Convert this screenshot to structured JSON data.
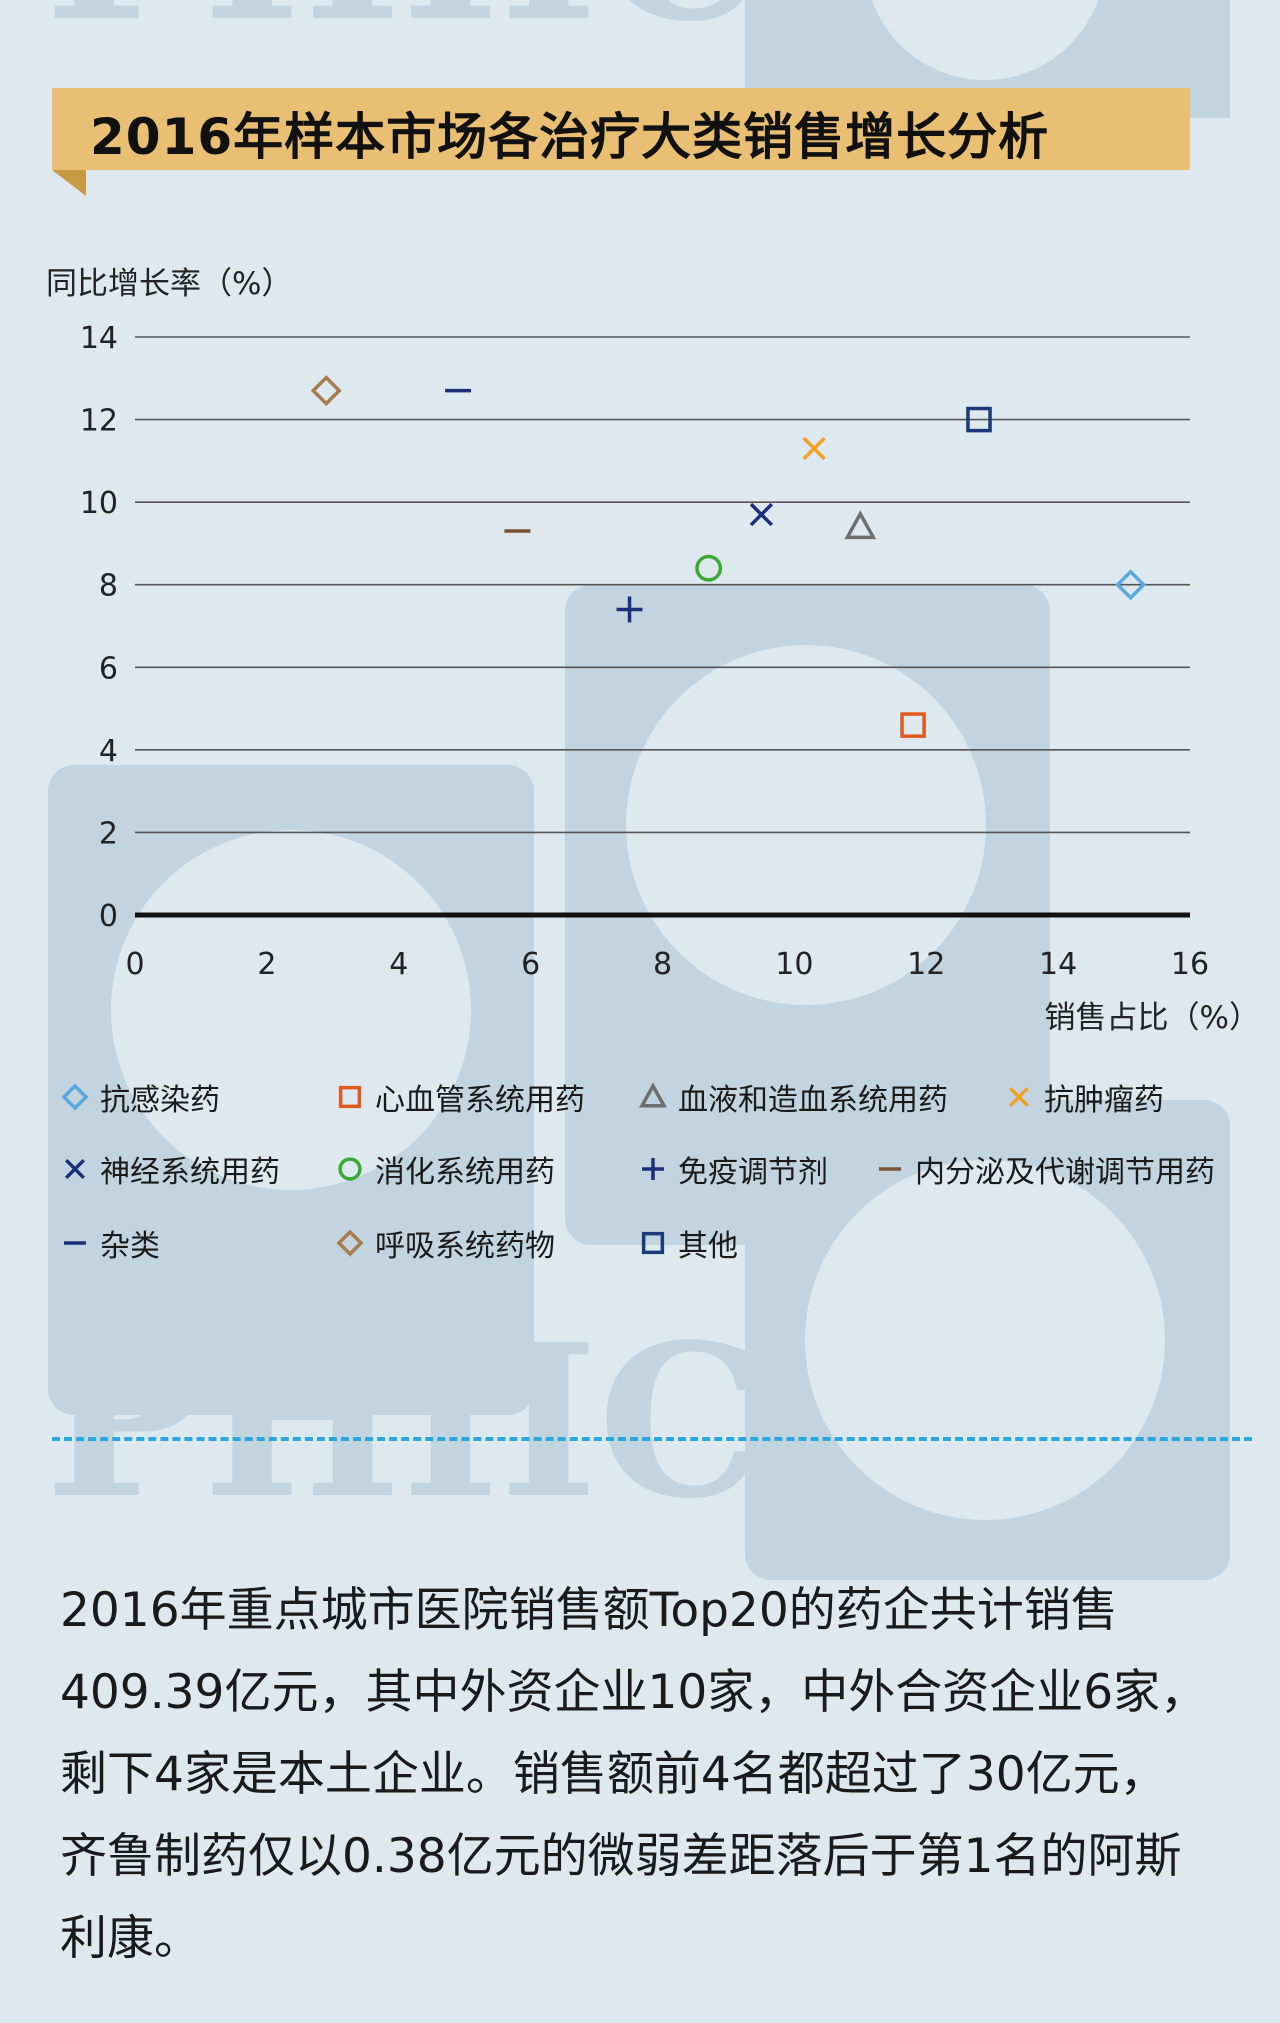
{
  "title": "2016年样本市场各治疗大类销售增长分析",
  "chart_data": {
    "type": "scatter",
    "title": "2016年样本市场各治疗大类销售增长分析",
    "xlabel": "销售占比（%）",
    "ylabel": "同比增长率（%）",
    "xlim": [
      0,
      16
    ],
    "ylim": [
      0,
      14
    ],
    "x_ticks": [
      0,
      2,
      4,
      6,
      8,
      10,
      12,
      14,
      16
    ],
    "y_ticks": [
      0,
      2,
      4,
      6,
      8,
      10,
      12,
      14
    ],
    "grid": true,
    "legend_position": "bottom",
    "series": [
      {
        "name": "抗感染药",
        "marker": "diamond",
        "color": "#5aa9de",
        "x": 15.1,
        "y": 8.0
      },
      {
        "name": "心血管系统用药",
        "marker": "square",
        "color": "#e05a1f",
        "x": 11.8,
        "y": 4.6
      },
      {
        "name": "血液和造血系统用药",
        "marker": "triangle",
        "color": "#6e6e6e",
        "x": 11.0,
        "y": 9.4
      },
      {
        "name": "抗肿瘤药",
        "marker": "x",
        "color": "#f0a128",
        "x": 10.3,
        "y": 11.3
      },
      {
        "name": "神经系统用药",
        "marker": "x",
        "color": "#1c2f7a",
        "x": 9.5,
        "y": 9.7
      },
      {
        "name": "消化系统用药",
        "marker": "circle",
        "color": "#3aaa35",
        "x": 8.7,
        "y": 8.4
      },
      {
        "name": "免疫调节剂",
        "marker": "plus",
        "color": "#1c2f7a",
        "x": 7.5,
        "y": 7.4
      },
      {
        "name": "内分泌及代谢调节用药",
        "marker": "dash",
        "color": "#7a5230",
        "x": 5.8,
        "y": 9.3
      },
      {
        "name": "杂类",
        "marker": "dash",
        "color": "#1c2f7a",
        "x": 4.9,
        "y": 12.7
      },
      {
        "name": "呼吸系统药物",
        "marker": "diamond",
        "color": "#a67c4e",
        "x": 2.9,
        "y": 12.7
      },
      {
        "name": "其他",
        "marker": "square",
        "color": "#1c3a78",
        "x": 12.8,
        "y": 12.0
      }
    ]
  },
  "paragraph": [
    "2016年重点城市医院销售额Top20的药企共计销售",
    "409.39亿元，其中外资企业10家，中外合资企业6家，",
    "剩下4家是本土企业。销售额前4名都超过了30亿元，",
    "齐鲁制药仅以0.38亿元的微弱差距落后于第1名的阿斯",
    "利康。"
  ],
  "watermark": "PHIIC"
}
